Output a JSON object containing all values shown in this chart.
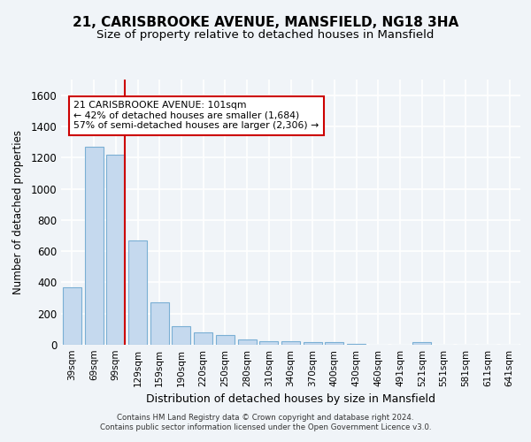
{
  "title": "21, CARISBROOKE AVENUE, MANSFIELD, NG18 3HA",
  "subtitle": "Size of property relative to detached houses in Mansfield",
  "xlabel": "Distribution of detached houses by size in Mansfield",
  "ylabel": "Number of detached properties",
  "footer_line1": "Contains HM Land Registry data © Crown copyright and database right 2024.",
  "footer_line2": "Contains public sector information licensed under the Open Government Licence v3.0.",
  "categories": [
    "39sqm",
    "69sqm",
    "99sqm",
    "129sqm",
    "159sqm",
    "190sqm",
    "220sqm",
    "250sqm",
    "280sqm",
    "310sqm",
    "340sqm",
    "370sqm",
    "400sqm",
    "430sqm",
    "460sqm",
    "491sqm",
    "521sqm",
    "551sqm",
    "581sqm",
    "611sqm",
    "641sqm"
  ],
  "values": [
    370,
    1270,
    1220,
    670,
    270,
    120,
    80,
    60,
    35,
    25,
    20,
    18,
    15,
    5,
    0,
    0,
    15,
    0,
    0,
    0,
    0
  ],
  "bar_color": "#c5d9ee",
  "bar_edge_color": "#7aafd4",
  "red_line_index": 2,
  "red_line_color": "#cc0000",
  "annotation_text": "21 CARISBROOKE AVENUE: 101sqm\n← 42% of detached houses are smaller (1,684)\n57% of semi-detached houses are larger (2,306) →",
  "ylim": [
    0,
    1700
  ],
  "yticks": [
    0,
    200,
    400,
    600,
    800,
    1000,
    1200,
    1400,
    1600
  ],
  "background_color": "#f0f4f8",
  "plot_bg_color": "#f0f4f8",
  "grid_color": "#ffffff",
  "title_fontsize": 11,
  "subtitle_fontsize": 9.5
}
